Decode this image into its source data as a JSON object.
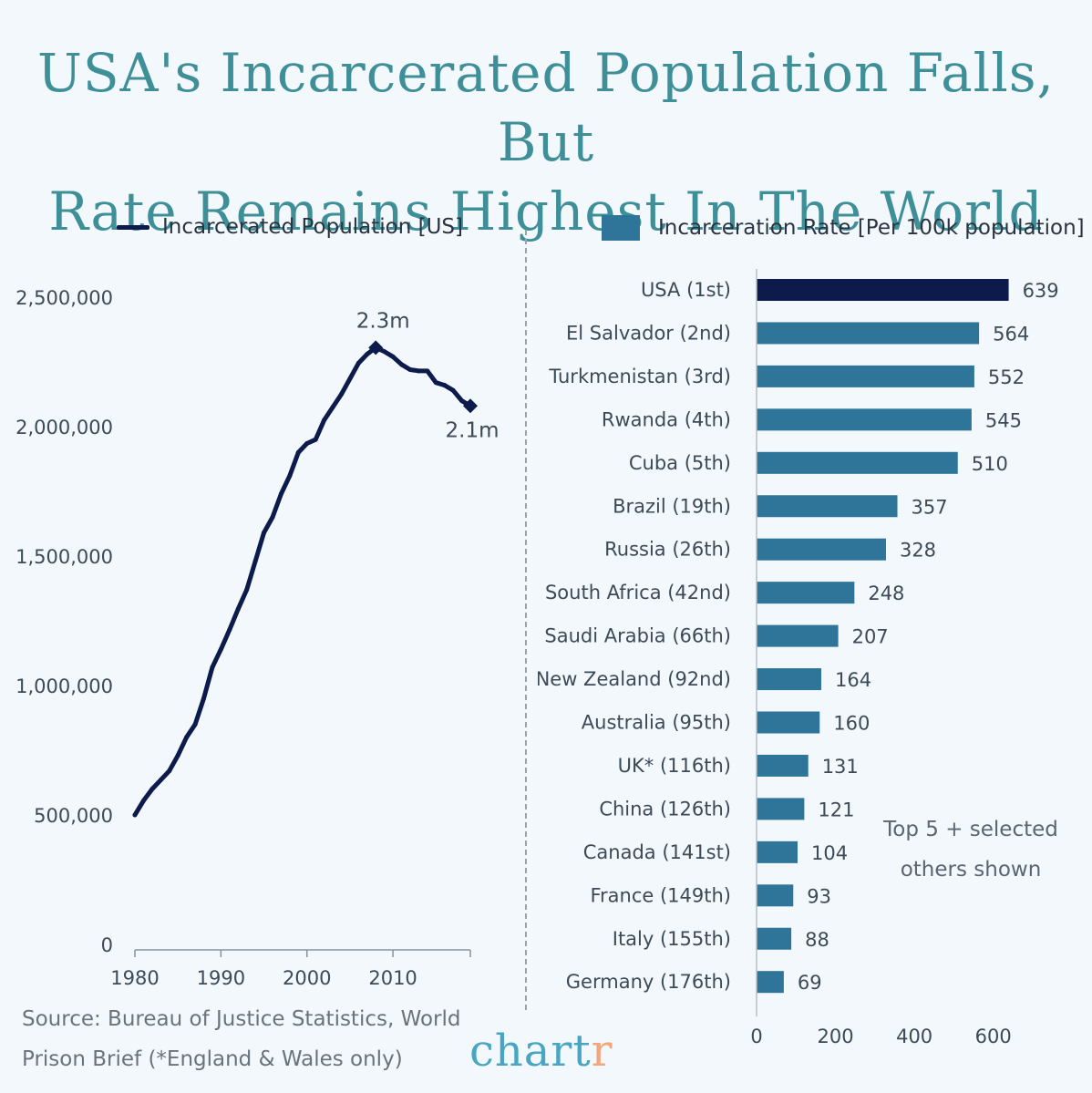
{
  "title": {
    "line1": "USA's Incarcerated Population Falls, But",
    "line2": "Rate Remains Highest In The World"
  },
  "legend": {
    "left_label": "Incarcerated Population [US]",
    "right_label": "Incarceration Rate [Per 100k population]"
  },
  "note": {
    "line1": "Top 5 + selected",
    "line2": "others shown"
  },
  "source": {
    "line1": "Source: Bureau of Justice Statistics, World",
    "line2": "Prison Brief (*England & Wales only)"
  },
  "brand": {
    "main": "chart",
    "accent": "r"
  },
  "colors": {
    "title": "#3f8f99",
    "line": "#0d1b4c",
    "bar": "#2e7599",
    "bar_highlight": "#0d1b4c"
  },
  "chart_data": [
    {
      "type": "line",
      "series": [
        {
          "name": "Incarcerated Population [US]",
          "x": [
            1980,
            1981,
            1982,
            1983,
            1984,
            1985,
            1986,
            1987,
            1988,
            1989,
            1990,
            1991,
            1992,
            1993,
            1994,
            1995,
            1996,
            1997,
            1998,
            1999,
            2000,
            2001,
            2002,
            2003,
            2004,
            2005,
            2006,
            2007,
            2008,
            2009,
            2010,
            2011,
            2012,
            2013,
            2014,
            2015,
            2016,
            2017,
            2018,
            2019
          ],
          "values": [
            500000,
            555000,
            600000,
            635000,
            670000,
            730000,
            800000,
            850000,
            950000,
            1070000,
            1140000,
            1215000,
            1295000,
            1370000,
            1480000,
            1590000,
            1650000,
            1740000,
            1810000,
            1900000,
            1935000,
            1950000,
            2025000,
            2075000,
            2125000,
            2185000,
            2245000,
            2280000,
            2305000,
            2290000,
            2270000,
            2240000,
            2220000,
            2215000,
            2215000,
            2170000,
            2160000,
            2140000,
            2100000,
            2080000
          ]
        }
      ],
      "annotations": [
        {
          "x": 2008,
          "y": 2305000,
          "label": "2.3m"
        },
        {
          "x": 2019,
          "y": 2080000,
          "label": "2.1m"
        }
      ],
      "ylim": [
        0,
        2500000
      ],
      "xlim": [
        1980,
        2019
      ],
      "y_ticks": [
        0,
        500000,
        1000000,
        1500000,
        2000000,
        2500000
      ],
      "y_tick_labels": [
        "0",
        "500,000",
        "1,000,000",
        "1,500,000",
        "2,000,000",
        "2,500,000"
      ],
      "x_ticks": [
        1980,
        1990,
        2000,
        2010
      ],
      "x_tick_labels": [
        "1980",
        "1990",
        "2000",
        "2010"
      ],
      "grid": false
    },
    {
      "type": "bar",
      "orientation": "horizontal",
      "categories": [
        "USA (1st)",
        "El Salvador (2nd)",
        "Turkmenistan (3rd)",
        "Rwanda (4th)",
        "Cuba (5th)",
        "Brazil (19th)",
        "Russia (26th)",
        "South Africa (42nd)",
        "Saudi Arabia (66th)",
        "New Zealand (92nd)",
        "Australia (95th)",
        "UK* (116th)",
        "China (126th)",
        "Canada (141st)",
        "France (149th)",
        "Italy (155th)",
        "Germany (176th)"
      ],
      "values": [
        639,
        564,
        552,
        545,
        510,
        357,
        328,
        248,
        207,
        164,
        160,
        131,
        121,
        104,
        93,
        88,
        69
      ],
      "value_labels": [
        "639",
        "564",
        "552",
        "545",
        "510",
        "357",
        "328",
        "248",
        "207",
        "164",
        "160",
        "131",
        "121",
        "104",
        "93",
        "88",
        "69"
      ],
      "highlight_index": 0,
      "xlim": [
        0,
        700
      ],
      "x_ticks": [
        0,
        200,
        400,
        600
      ],
      "x_tick_labels": [
        "0",
        "200",
        "400",
        "600"
      ],
      "grid": false
    }
  ]
}
